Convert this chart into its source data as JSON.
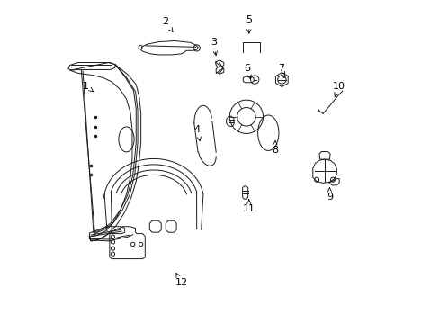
{
  "background_color": "#ffffff",
  "line_color": "#1a1a1a",
  "fig_width": 4.89,
  "fig_height": 3.6,
  "dpi": 100,
  "label_fontsize": 8,
  "lw": 0.7,
  "labels": {
    "1": [
      0.085,
      0.735,
      0.115,
      0.712
    ],
    "2": [
      0.33,
      0.935,
      0.36,
      0.895
    ],
    "3": [
      0.48,
      0.87,
      0.49,
      0.82
    ],
    "4": [
      0.43,
      0.6,
      0.44,
      0.555
    ],
    "5": [
      0.59,
      0.94,
      0.59,
      0.888
    ],
    "6": [
      0.585,
      0.79,
      0.595,
      0.755
    ],
    "7": [
      0.69,
      0.79,
      0.7,
      0.758
    ],
    "8": [
      0.67,
      0.535,
      0.672,
      0.568
    ],
    "9": [
      0.84,
      0.39,
      0.84,
      0.43
    ],
    "10": [
      0.87,
      0.735,
      0.855,
      0.7
    ],
    "11": [
      0.59,
      0.355,
      0.59,
      0.385
    ],
    "12": [
      0.38,
      0.125,
      0.36,
      0.165
    ]
  }
}
